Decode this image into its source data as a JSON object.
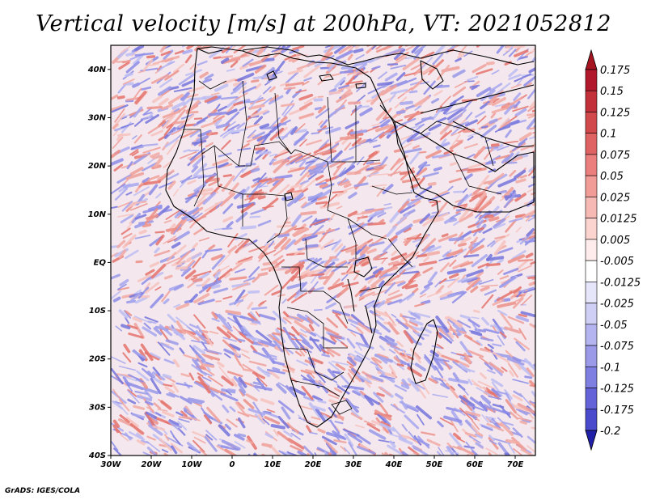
{
  "title": "Vertical velocity [m/s] at 200hPa, VT: 2021052812",
  "footer": "GrADS: IGES/COLA",
  "map": {
    "region": "Africa",
    "lon_range": [
      -30,
      75
    ],
    "lat_range": [
      -40,
      45
    ],
    "lon_ticks": [
      {
        "value": -30,
        "label": "30W"
      },
      {
        "value": -20,
        "label": "20W"
      },
      {
        "value": -10,
        "label": "10W"
      },
      {
        "value": 0,
        "label": "0"
      },
      {
        "value": 10,
        "label": "10E"
      },
      {
        "value": 20,
        "label": "20E"
      },
      {
        "value": 30,
        "label": "30E"
      },
      {
        "value": 40,
        "label": "40E"
      },
      {
        "value": 50,
        "label": "50E"
      },
      {
        "value": 60,
        "label": "60E"
      },
      {
        "value": 70,
        "label": "70E"
      }
    ],
    "lat_ticks": [
      {
        "value": 40,
        "label": "40N"
      },
      {
        "value": 30,
        "label": "30N"
      },
      {
        "value": 20,
        "label": "20N"
      },
      {
        "value": 10,
        "label": "10N"
      },
      {
        "value": 0,
        "label": "EQ"
      },
      {
        "value": -10,
        "label": "10S"
      },
      {
        "value": -20,
        "label": "20S"
      },
      {
        "value": -30,
        "label": "30S"
      },
      {
        "value": -40,
        "label": "40S"
      }
    ]
  },
  "colorbar": {
    "levels": [
      {
        "label": "0.175",
        "color": "#b2182b"
      },
      {
        "label": "0.15",
        "color": "#c2303a"
      },
      {
        "label": "0.125",
        "color": "#d2494c"
      },
      {
        "label": "0.1",
        "color": "#e06363"
      },
      {
        "label": "0.075",
        "color": "#eb7f7d"
      },
      {
        "label": "0.05",
        "color": "#f29c98"
      },
      {
        "label": "0.025",
        "color": "#f7b9b4"
      },
      {
        "label": "0.0125",
        "color": "#fbd4d0"
      },
      {
        "label": "0.005",
        "color": "#fdeceb"
      },
      {
        "label": "-0.005",
        "color": "#ffffff"
      },
      {
        "label": "-0.0125",
        "color": "#e6e6fb"
      },
      {
        "label": "-0.025",
        "color": "#cfcff6"
      },
      {
        "label": "-0.05",
        "color": "#b4b4f0"
      },
      {
        "label": "-0.075",
        "color": "#9a9ae9"
      },
      {
        "label": "-0.1",
        "color": "#7f7fe1"
      },
      {
        "label": "-0.125",
        "color": "#6464d8"
      },
      {
        "label": "-0.175",
        "color": "#4a4acd"
      },
      {
        "label": "-0.2",
        "color": "#2f2fbf"
      }
    ],
    "top_color": "#a5141f",
    "bottom_color": "#2020a8"
  },
  "colors": {
    "positive": "#e8837b",
    "negative": "#8888e6",
    "land_outline": "#000000"
  }
}
